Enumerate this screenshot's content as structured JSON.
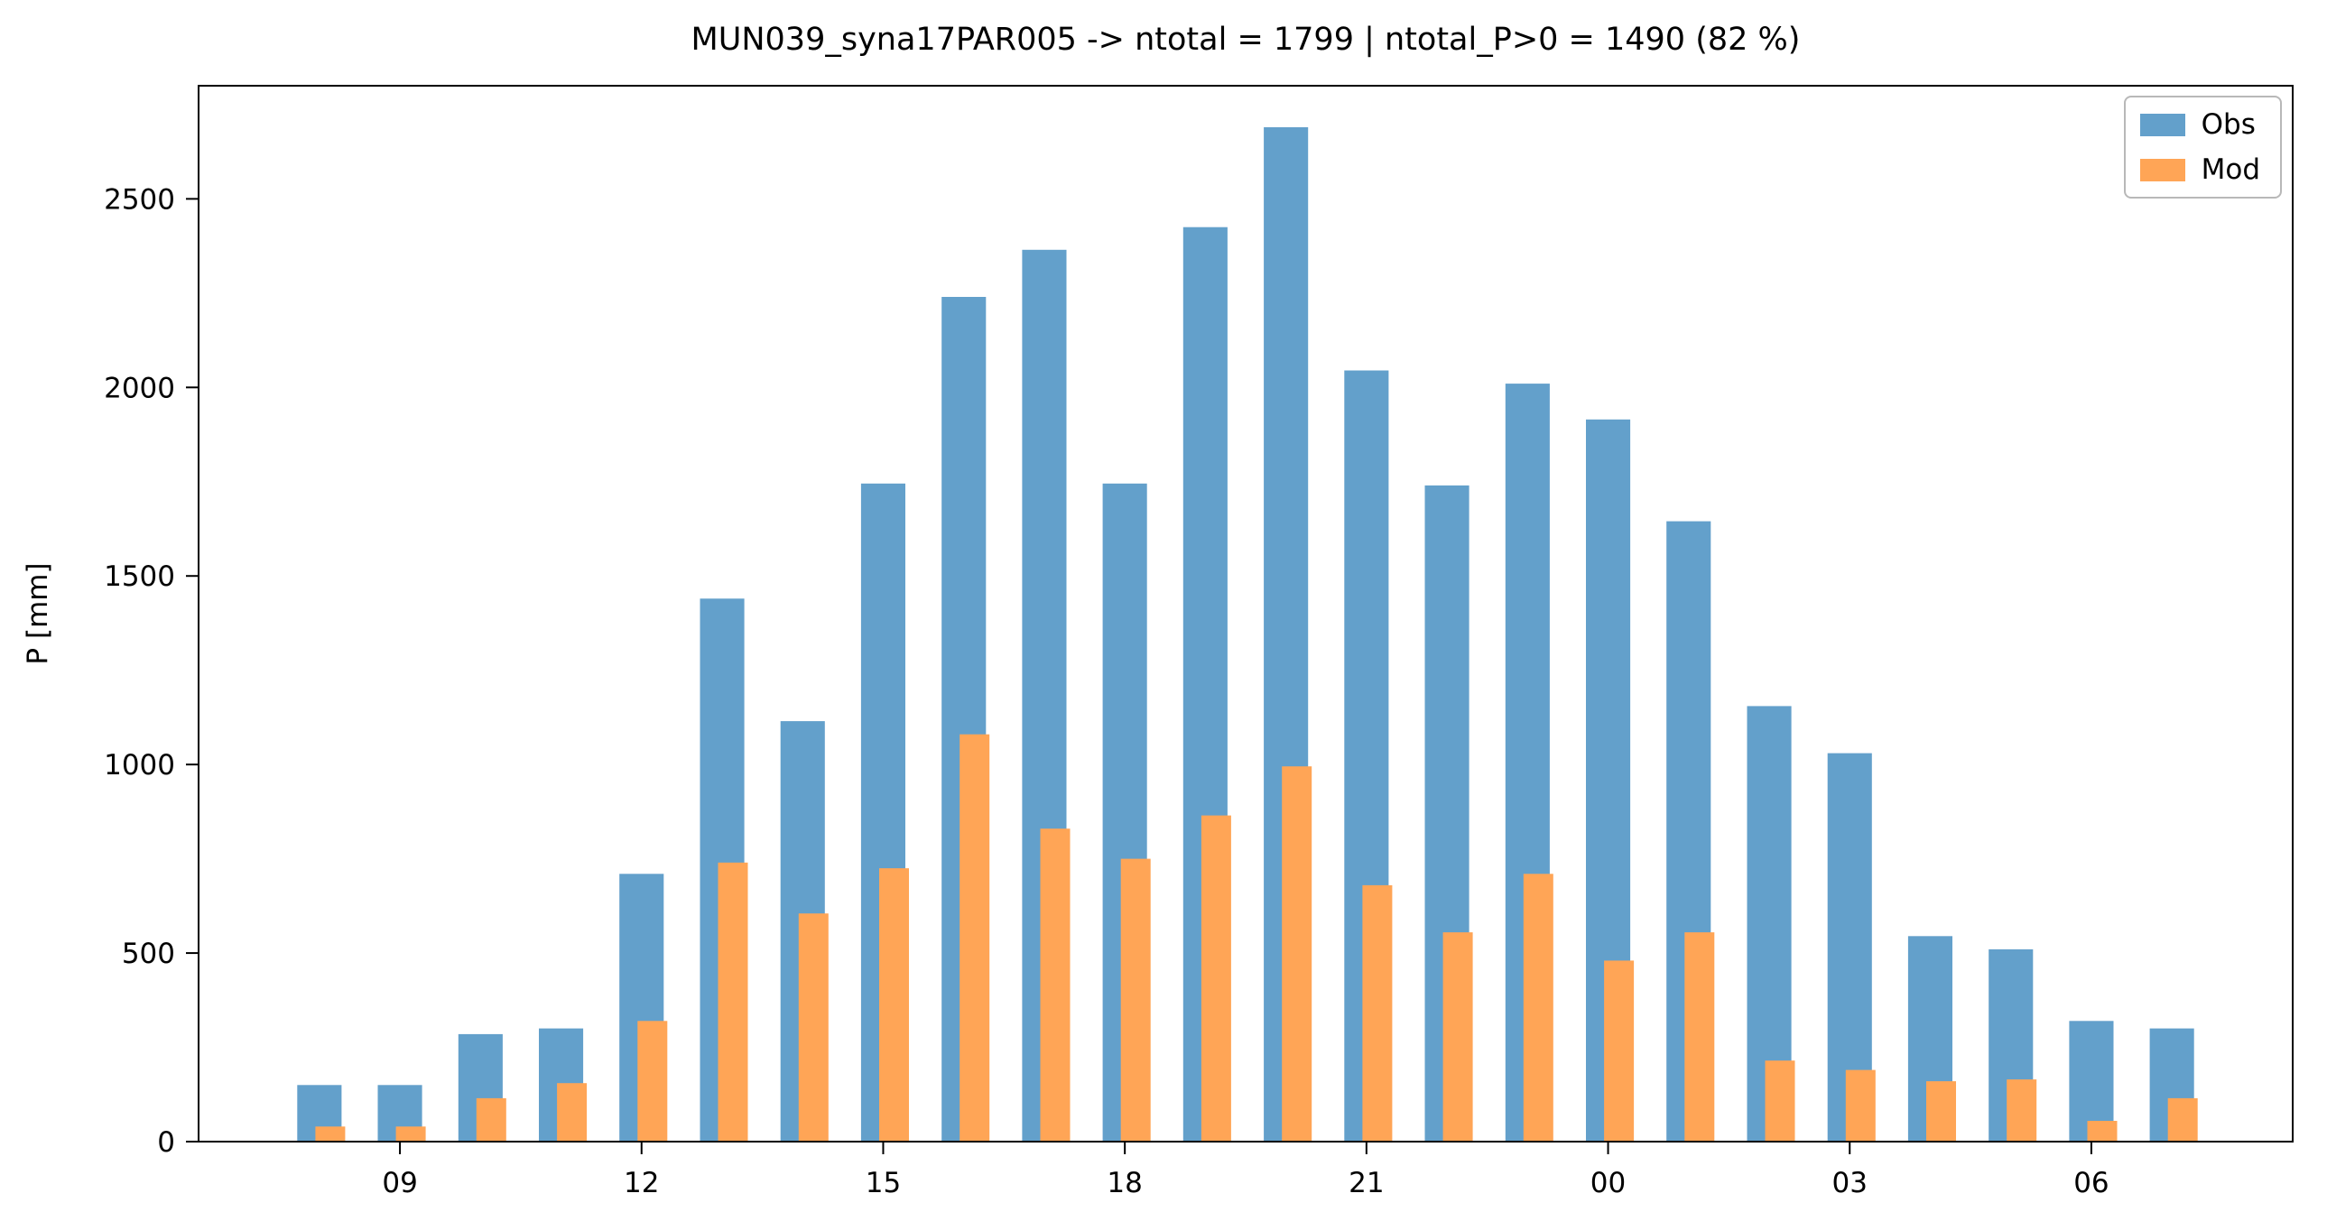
{
  "page": {
    "background": "#ffffff"
  },
  "chart_data": {
    "type": "bar",
    "title": "MUN039_syna17PAR005 -> ntotal = 1799 | ntotal_P>0 = 1490 (82 %)",
    "xlabel": "",
    "ylabel": "P [mm]",
    "categories": [
      "08",
      "09",
      "10",
      "11",
      "12",
      "13",
      "14",
      "15",
      "16",
      "17",
      "18",
      "19",
      "20",
      "21",
      "22",
      "23",
      "00",
      "01",
      "02",
      "03",
      "04",
      "05",
      "06",
      "07"
    ],
    "series": [
      {
        "name": "Obs",
        "color": "#63A0CB",
        "values": [
          150,
          150,
          285,
          300,
          710,
          1440,
          1115,
          1745,
          2240,
          2365,
          1745,
          2425,
          2690,
          2045,
          1740,
          2010,
          1915,
          1645,
          1155,
          1030,
          545,
          510,
          320,
          300
        ]
      },
      {
        "name": "Mod",
        "color": "#FFA556",
        "values": [
          40,
          40,
          115,
          155,
          320,
          740,
          605,
          725,
          1080,
          830,
          750,
          865,
          995,
          680,
          555,
          710,
          480,
          555,
          215,
          190,
          160,
          165,
          55,
          115
        ]
      }
    ],
    "ylim": [
      0,
      2800
    ],
    "yticks": [
      0,
      500,
      1000,
      1500,
      2000,
      2500
    ],
    "xticks": [
      {
        "index": 1,
        "label": "09"
      },
      {
        "index": 4,
        "label": "12"
      },
      {
        "index": 7,
        "label": "15"
      },
      {
        "index": 10,
        "label": "18"
      },
      {
        "index": 13,
        "label": "21"
      },
      {
        "index": 16,
        "label": "00"
      },
      {
        "index": 19,
        "label": "03"
      },
      {
        "index": 22,
        "label": "06"
      }
    ],
    "grid": false,
    "legend": {
      "position": "upper right",
      "entries": [
        "Obs",
        "Mod"
      ]
    }
  }
}
